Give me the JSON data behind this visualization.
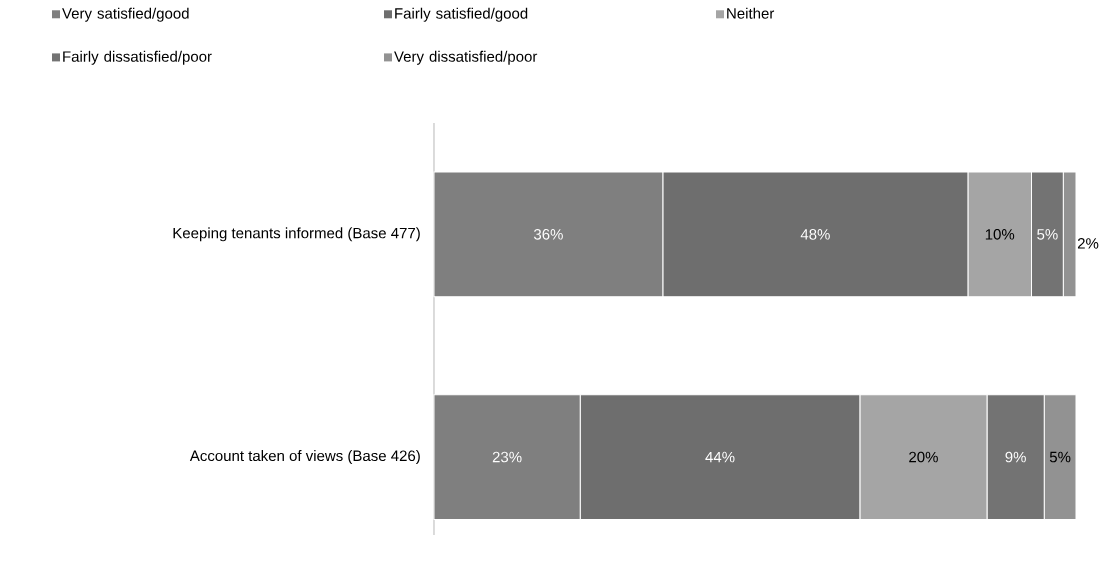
{
  "chart_data": {
    "type": "bar",
    "orientation": "horizontal",
    "stacked": true,
    "legend": "top left",
    "categories": [
      "Keeping tenants informed (Base 477)",
      "Account taken of views (Base 426)"
    ],
    "series": [
      {
        "name": "Very satisfied/good",
        "color": "#7f7f7f",
        "values": [
          36,
          23
        ],
        "value_labels": [
          "36%",
          "23%"
        ]
      },
      {
        "name": "Fairly satisfied/good",
        "color": "#6e6e6e",
        "values": [
          48,
          44
        ],
        "value_labels": [
          "48%",
          "44%"
        ]
      },
      {
        "name": "Neither",
        "color": "#a5a5a5",
        "values": [
          10,
          20
        ],
        "value_labels": [
          "10%",
          "20%"
        ]
      },
      {
        "name": "Fairly dissatisfied/poor",
        "color": "#737373",
        "values": [
          5,
          9
        ],
        "value_labels": [
          "5%",
          "9%"
        ]
      },
      {
        "name": "Very dissatisfied/poor",
        "color": "#929292",
        "values": [
          2,
          5
        ],
        "value_labels": [
          "2%",
          "5%"
        ]
      }
    ]
  }
}
